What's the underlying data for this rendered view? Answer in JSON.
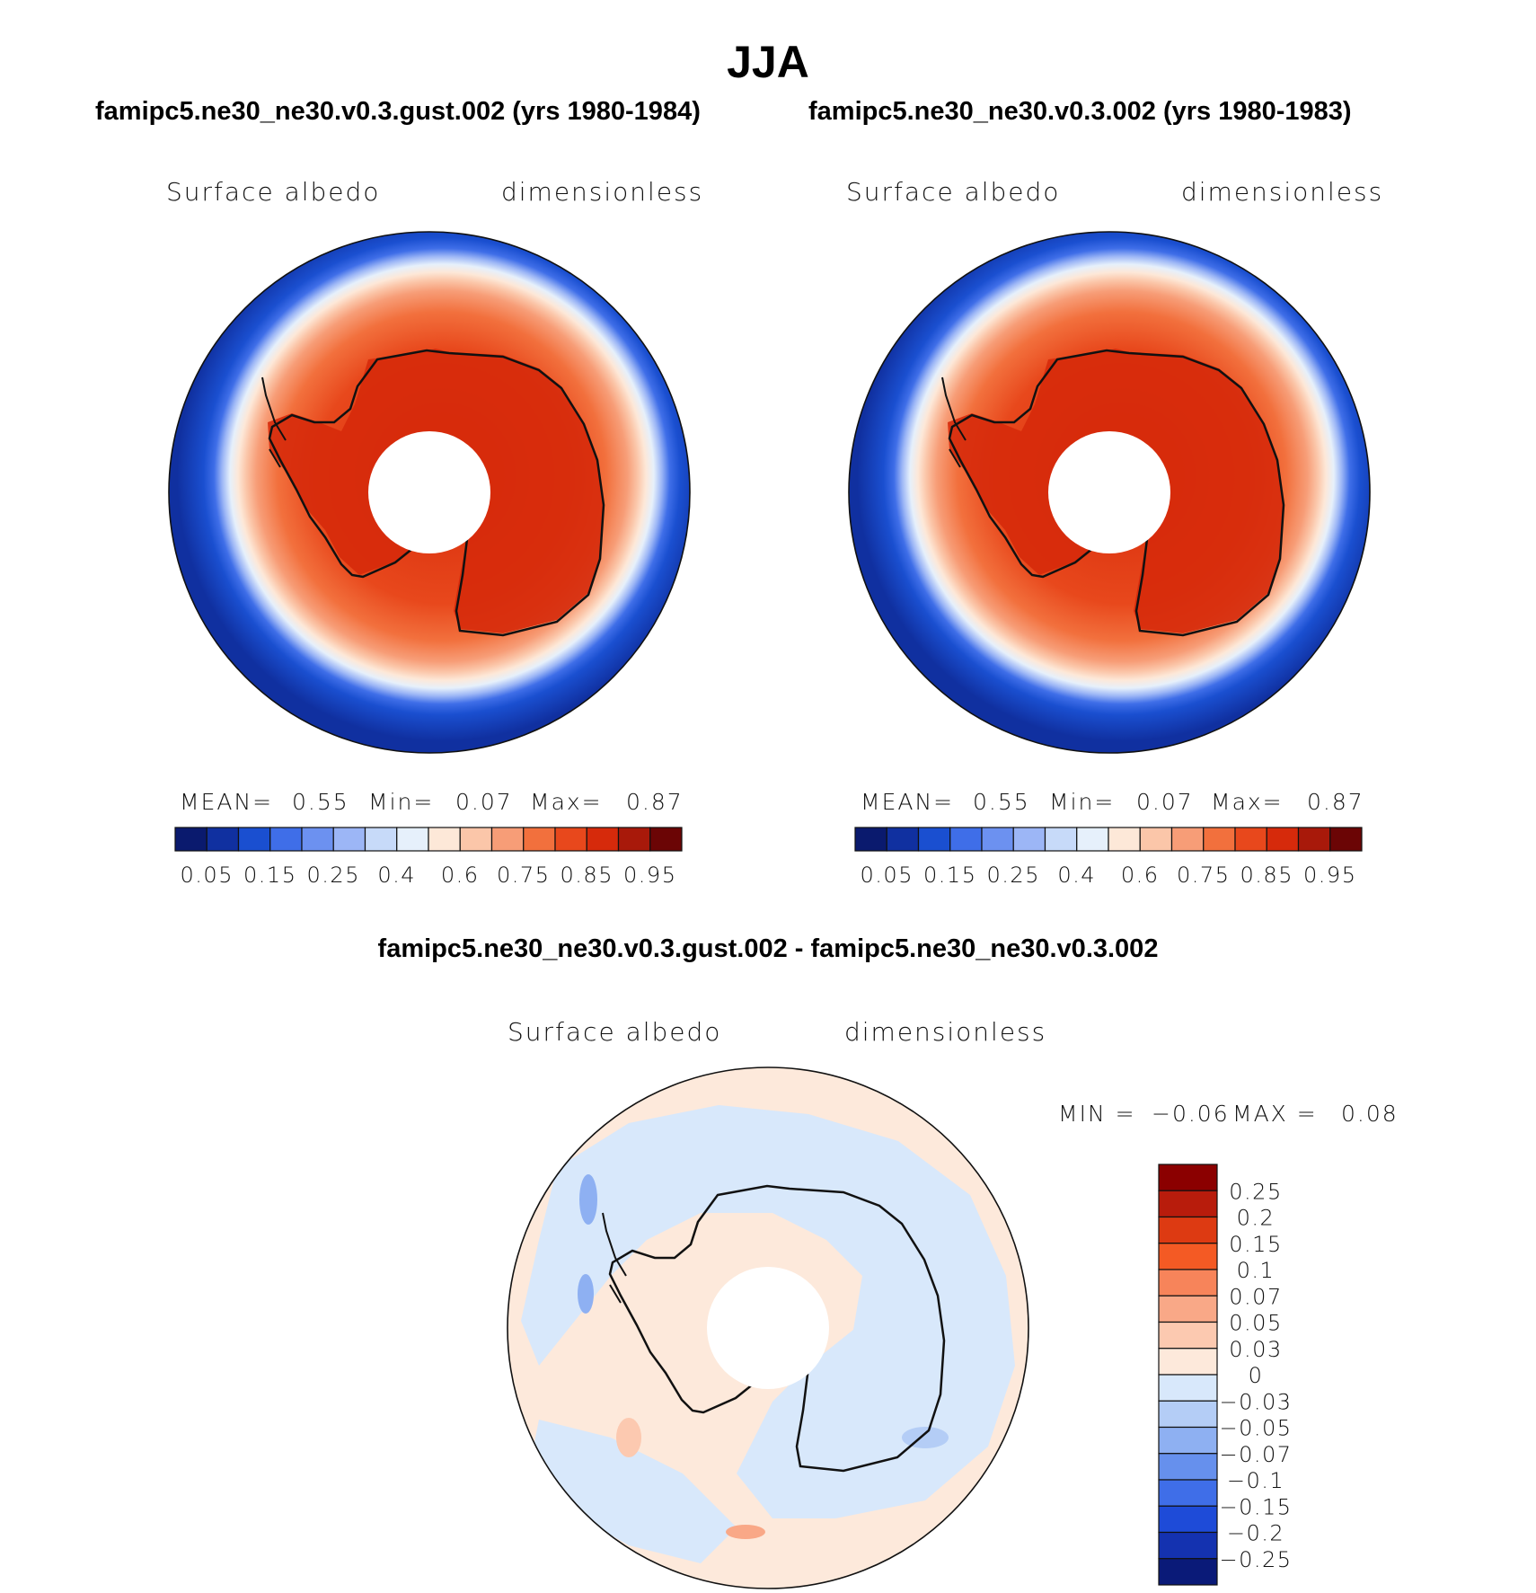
{
  "figure": {
    "title": "JJA",
    "diff_title": "famipc5.ne30_ne30.v0.3.gust.002 - famipc5.ne30_ne30.v0.3.002"
  },
  "chart_data": [
    {
      "type": "heatmap",
      "projection": "south-polar-stereographic",
      "title": "famipc5.ne30_ne30.v0.3.gust.002 (yrs 1980-1984)",
      "variable": "Surface albedo",
      "units": "dimensionless",
      "stats": {
        "mean_label": "MEAN=",
        "mean": "0.55",
        "min_label": "Min=",
        "min": "0.07",
        "max_label": "Max=",
        "max": "0.87"
      },
      "colorbar": {
        "orientation": "horizontal",
        "tick_labels": [
          "0.05",
          "0.15",
          "0.25",
          "0.4",
          "0.6",
          "0.75",
          "0.85",
          "0.95"
        ],
        "colors": [
          "#0a1a6e",
          "#1030a0",
          "#1a4fd0",
          "#3f6ee8",
          "#6c91f0",
          "#9cb6f6",
          "#c7daf9",
          "#e6f0fb",
          "#fde8d8",
          "#fbc6a9",
          "#f79d77",
          "#f2703d",
          "#e8481c",
          "#d62a0b",
          "#a8190a",
          "#6b0505"
        ]
      }
    },
    {
      "type": "heatmap",
      "projection": "south-polar-stereographic",
      "title": "famipc5.ne30_ne30.v0.3.002 (yrs 1980-1983)",
      "variable": "Surface albedo",
      "units": "dimensionless",
      "stats": {
        "mean_label": "MEAN=",
        "mean": "0.55",
        "min_label": "Min=",
        "min": "0.07",
        "max_label": "Max=",
        "max": "0.87"
      },
      "colorbar": {
        "orientation": "horizontal",
        "tick_labels": [
          "0.05",
          "0.15",
          "0.25",
          "0.4",
          "0.6",
          "0.75",
          "0.85",
          "0.95"
        ],
        "colors": [
          "#0a1a6e",
          "#1030a0",
          "#1a4fd0",
          "#3f6ee8",
          "#6c91f0",
          "#9cb6f6",
          "#c7daf9",
          "#e6f0fb",
          "#fde8d8",
          "#fbc6a9",
          "#f79d77",
          "#f2703d",
          "#e8481c",
          "#d62a0b",
          "#a8190a",
          "#6b0505"
        ]
      }
    },
    {
      "type": "heatmap",
      "projection": "south-polar-stereographic",
      "title": "famipc5.ne30_ne30.v0.3.gust.002 - famipc5.ne30_ne30.v0.3.002",
      "variable": "Surface albedo",
      "units": "dimensionless",
      "stats": {
        "min_label": "MIN =",
        "min": "−0.06",
        "max_label": "MAX =",
        "max": "0.08"
      },
      "colorbar": {
        "orientation": "vertical",
        "tick_labels": [
          "0.25",
          "0.2",
          "0.15",
          "0.1",
          "0.07",
          "0.05",
          "0.03",
          "0",
          "−0.03",
          "−0.05",
          "−0.07",
          "−0.1",
          "−0.15",
          "−0.2",
          "−0.25"
        ],
        "colors": [
          "#8b0000",
          "#b81c0c",
          "#dd3a12",
          "#f45a24",
          "#f7845a",
          "#f9a887",
          "#fcc9b0",
          "#fde9db",
          "#d8e8fb",
          "#b4cdf6",
          "#8eb0f2",
          "#6690ed",
          "#3f6ee8",
          "#1e4bd8",
          "#1432b0",
          "#0a1a78"
        ]
      }
    }
  ]
}
